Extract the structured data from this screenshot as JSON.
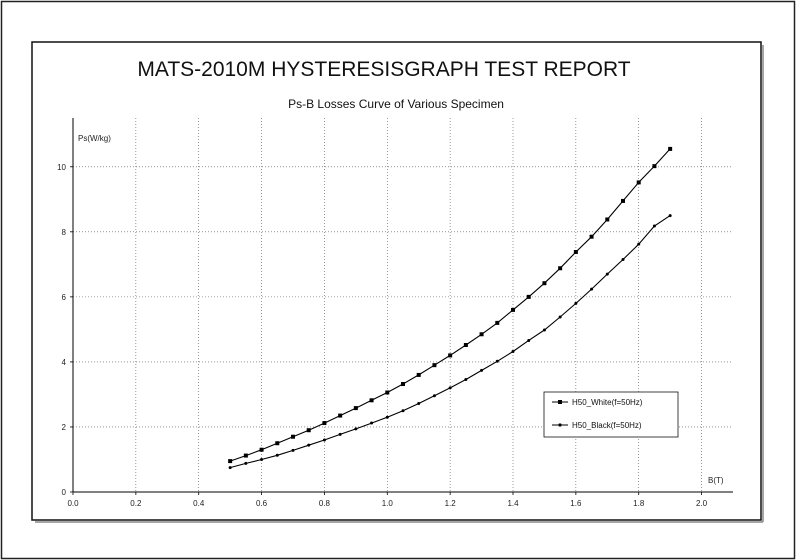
{
  "report_title": "MATS-2010M HYSTERESISGRAPH TEST REPORT",
  "chart_data": {
    "type": "line",
    "title": "Ps-B Losses Curve of Various Specimen",
    "xlabel": "B(T)",
    "ylabel": "Ps(W/kg)",
    "xlim": [
      0.0,
      2.1
    ],
    "ylim": [
      0,
      11.5
    ],
    "x_ticks": [
      "0.0",
      "0.2",
      "0.4",
      "0.6",
      "0.8",
      "1.0",
      "1.2",
      "1.4",
      "1.6",
      "1.8",
      "2.0"
    ],
    "y_ticks": [
      "0",
      "2",
      "4",
      "6",
      "8",
      "10"
    ],
    "grid": true,
    "legend_position": "lower-right",
    "series": [
      {
        "name": "H50_White(f=50Hz)",
        "marker": "square",
        "color": "#000000",
        "x": [
          0.5,
          0.55,
          0.6,
          0.65,
          0.7,
          0.75,
          0.8,
          0.85,
          0.9,
          0.95,
          1.0,
          1.05,
          1.1,
          1.15,
          1.2,
          1.25,
          1.3,
          1.35,
          1.4,
          1.45,
          1.5,
          1.55,
          1.6,
          1.65,
          1.7,
          1.75,
          1.8,
          1.85,
          1.9
        ],
        "values": [
          0.95,
          1.12,
          1.3,
          1.5,
          1.7,
          1.9,
          2.12,
          2.35,
          2.58,
          2.82,
          3.06,
          3.32,
          3.6,
          3.9,
          4.2,
          4.52,
          4.85,
          5.2,
          5.6,
          6.0,
          6.42,
          6.88,
          7.38,
          7.85,
          8.38,
          8.95,
          9.52,
          10.02,
          10.55
        ]
      },
      {
        "name": "H50_Black(f=50Hz)",
        "marker": "dot",
        "color": "#000000",
        "x": [
          0.5,
          0.55,
          0.6,
          0.65,
          0.7,
          0.75,
          0.8,
          0.85,
          0.9,
          0.95,
          1.0,
          1.05,
          1.1,
          1.15,
          1.2,
          1.25,
          1.3,
          1.35,
          1.4,
          1.45,
          1.5,
          1.55,
          1.6,
          1.65,
          1.7,
          1.75,
          1.8,
          1.85,
          1.9
        ],
        "values": [
          0.75,
          0.88,
          1.0,
          1.13,
          1.28,
          1.44,
          1.6,
          1.77,
          1.94,
          2.12,
          2.3,
          2.5,
          2.72,
          2.96,
          3.2,
          3.46,
          3.74,
          4.02,
          4.32,
          4.66,
          4.98,
          5.38,
          5.8,
          6.24,
          6.7,
          7.15,
          7.62,
          8.18,
          8.5
        ]
      }
    ]
  }
}
